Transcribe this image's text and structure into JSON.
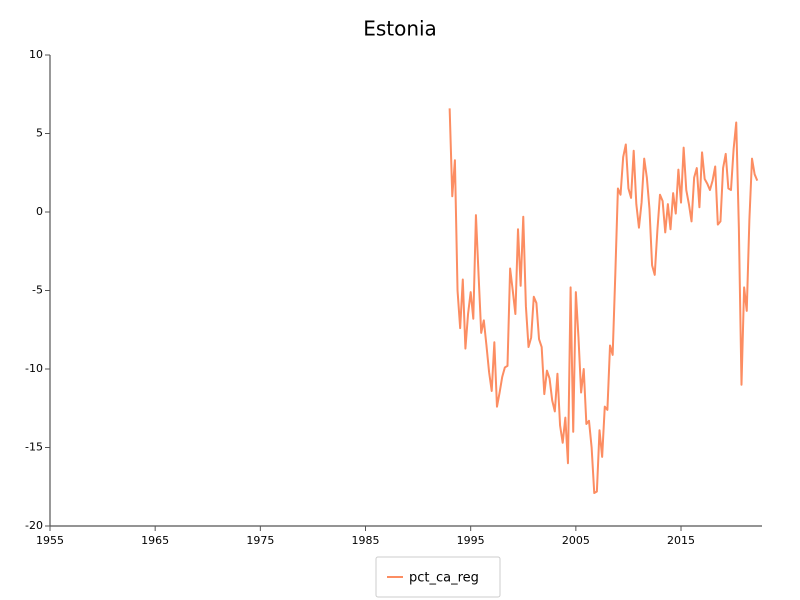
{
  "chart_data": {
    "type": "line",
    "title": "Estonia",
    "x": [
      1993,
      1993.25,
      1993.5,
      1993.75,
      1994,
      1994.25,
      1994.5,
      1994.75,
      1995,
      1995.25,
      1995.5,
      1995.75,
      1996,
      1996.25,
      1996.5,
      1996.75,
      1997,
      1997.25,
      1997.5,
      1997.75,
      1998,
      1998.25,
      1998.5,
      1998.75,
      1999,
      1999.25,
      1999.5,
      1999.75,
      2000,
      2000.25,
      2000.5,
      2000.75,
      2001,
      2001.25,
      2001.5,
      2001.75,
      2002,
      2002.25,
      2002.5,
      2002.75,
      2003,
      2003.25,
      2003.5,
      2003.75,
      2004,
      2004.25,
      2004.5,
      2004.75,
      2005,
      2005.25,
      2005.5,
      2005.75,
      2006,
      2006.25,
      2006.5,
      2006.75,
      2007,
      2007.25,
      2007.5,
      2007.75,
      2008,
      2008.25,
      2008.5,
      2008.75,
      2009,
      2009.25,
      2009.5,
      2009.75,
      2010,
      2010.25,
      2010.5,
      2010.75,
      2011,
      2011.25,
      2011.5,
      2011.75,
      2012,
      2012.25,
      2012.5,
      2012.75,
      2013,
      2013.25,
      2013.5,
      2013.75,
      2014,
      2014.25,
      2014.5,
      2014.75,
      2015,
      2015.25,
      2015.5,
      2015.75,
      2016,
      2016.25,
      2016.5,
      2016.75,
      2017,
      2017.25,
      2017.5,
      2017.75,
      2018,
      2018.25,
      2018.5,
      2018.75,
      2019,
      2019.25,
      2019.5,
      2019.75,
      2020,
      2020.25,
      2020.5,
      2020.75,
      2021,
      2021.25,
      2021.5,
      2021.75,
      2022,
      2022.25
    ],
    "series": [
      {
        "name": "pct_ca_reg",
        "color": "#fc8d62",
        "values": [
          6.6,
          1.0,
          3.3,
          -5.0,
          -7.4,
          -4.3,
          -8.7,
          -6.5,
          -5.1,
          -6.8,
          -0.2,
          -4.0,
          -7.7,
          -6.9,
          -8.5,
          -10.2,
          -11.4,
          -8.3,
          -12.4,
          -11.5,
          -10.5,
          -9.9,
          -9.8,
          -3.6,
          -5.0,
          -6.5,
          -1.1,
          -4.7,
          -0.3,
          -6.0,
          -8.6,
          -8.0,
          -5.4,
          -5.8,
          -8.1,
          -8.6,
          -11.6,
          -10.1,
          -10.6,
          -12.0,
          -12.7,
          -10.3,
          -13.6,
          -14.7,
          -13.1,
          -16.0,
          -4.8,
          -14.0,
          -5.1,
          -8.0,
          -11.5,
          -10.0,
          -13.5,
          -13.3,
          -15.0,
          -17.9,
          -17.8,
          -13.9,
          -15.6,
          -12.4,
          -12.6,
          -8.5,
          -9.1,
          -4.0,
          1.5,
          1.1,
          3.5,
          4.3,
          1.5,
          0.9,
          3.9,
          0.5,
          -1.0,
          0.6,
          3.4,
          2.2,
          0.2,
          -3.4,
          -4.0,
          -1.2,
          1.1,
          0.7,
          -1.3,
          0.5,
          -1.1,
          1.2,
          -0.1,
          2.7,
          0.6,
          4.1,
          1.4,
          0.5,
          -0.6,
          2.2,
          2.8,
          0.3,
          3.8,
          2.1,
          1.8,
          1.4,
          2.0,
          2.9,
          -0.8,
          -0.6,
          2.8,
          3.7,
          1.5,
          1.4,
          4.0,
          5.7,
          -1.0,
          -11.0,
          -4.8,
          -6.3,
          -0.5,
          3.4,
          2.4,
          2.0
        ]
      }
    ],
    "xlim": [
      1955,
      2022.7
    ],
    "xticks": [
      1955,
      1965,
      1975,
      1985,
      1995,
      2005,
      2015
    ],
    "ylim": [
      -20,
      10
    ],
    "yticks": [
      -20,
      -15,
      -10,
      -5,
      0,
      5,
      10
    ],
    "legend": "bottom"
  }
}
